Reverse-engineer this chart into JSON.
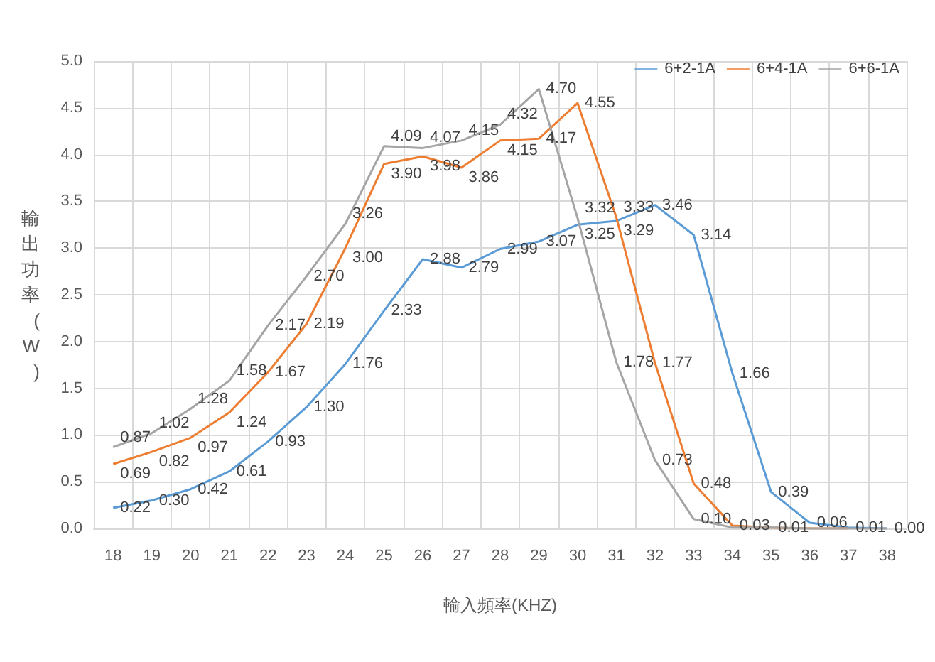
{
  "chart_data": {
    "type": "line",
    "xlabel": "輸入頻率(KHZ)",
    "ylabel": "輸出功率(W)",
    "categories": [
      "18",
      "19",
      "20",
      "21",
      "22",
      "23",
      "24",
      "25",
      "26",
      "27",
      "28",
      "29",
      "30",
      "31",
      "32",
      "33",
      "34",
      "35",
      "36",
      "37",
      "38"
    ],
    "series": [
      {
        "name": "6+2-1A",
        "color": "#5b9bd5",
        "values": [
          0.22,
          0.3,
          0.42,
          0.61,
          0.93,
          1.3,
          1.76,
          2.33,
          2.88,
          2.79,
          2.99,
          3.07,
          3.25,
          3.29,
          3.46,
          3.14,
          1.66,
          0.39,
          0.06,
          0.01,
          0.0
        ],
        "value_labels": [
          "0.22",
          "0.30",
          "0.42",
          "0.61",
          "0.93",
          "1.30",
          "1.76",
          "2.33",
          "2.88",
          "2.79",
          "2.99",
          "3.07",
          "3.25",
          "3.29",
          "3.46",
          "3.14",
          "1.66",
          "0.39",
          "0.06",
          "0.01",
          "0.00"
        ]
      },
      {
        "name": "6+4-1A",
        "color": "#ed7d31",
        "values": [
          0.69,
          0.82,
          0.97,
          1.24,
          1.67,
          2.19,
          3.0,
          3.9,
          3.98,
          3.86,
          4.15,
          4.17,
          4.55,
          3.33,
          1.77,
          0.48,
          0.03,
          0.01,
          0.0,
          0.0,
          null
        ],
        "value_labels": [
          "0.69",
          "0.82",
          "0.97",
          "1.24",
          "1.67",
          "2.19",
          "3.00",
          "3.90",
          "3.98",
          "3.86",
          "4.15",
          "4.17",
          "4.55",
          "3.33",
          "1.77",
          "0.48",
          "0.03",
          "0.01",
          null,
          null,
          null
        ]
      },
      {
        "name": "6+6-1A",
        "color": "#a5a5a5",
        "values": [
          0.87,
          1.02,
          1.28,
          1.58,
          2.17,
          2.7,
          3.26,
          4.09,
          4.07,
          4.15,
          4.32,
          4.7,
          3.32,
          1.78,
          0.73,
          0.1,
          0.01,
          0.01,
          0.0,
          0.0,
          0.0
        ],
        "value_labels": [
          "0.87",
          "1.02",
          "1.28",
          "1.58",
          "2.17",
          "2.70",
          "3.26",
          "4.09",
          "4.07",
          "4.15",
          "4.32",
          "4.70",
          "3.32",
          "1.78",
          "0.73",
          "0.10",
          null,
          null,
          null,
          null,
          null
        ]
      }
    ],
    "ylim": [
      0,
      5
    ],
    "yticks": [
      {
        "value": 0,
        "label": "0.0"
      },
      {
        "value": 0.5,
        "label": "0.5"
      },
      {
        "value": 1,
        "label": "1.0"
      },
      {
        "value": 1.5,
        "label": "1.5"
      },
      {
        "value": 2,
        "label": "2.0"
      },
      {
        "value": 2.5,
        "label": "2.5"
      },
      {
        "value": 3,
        "label": "3.0"
      },
      {
        "value": 3.5,
        "label": "3.5"
      },
      {
        "value": 4,
        "label": "4.0"
      },
      {
        "value": 4.5,
        "label": "4.5"
      },
      {
        "value": 5,
        "label": "5.0"
      }
    ],
    "grid": true,
    "legend": "top right",
    "marker": "none",
    "line_style": "solid"
  }
}
